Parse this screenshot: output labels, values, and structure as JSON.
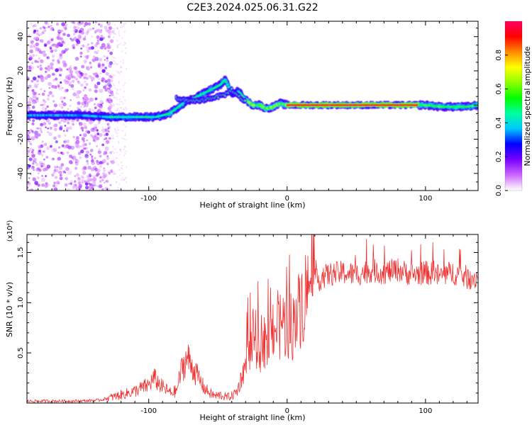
{
  "title": "C2E3.2024.025.06.31.G22",
  "chart_data": [
    {
      "type": "heatmap",
      "xlabel": "Height of straight line (km)",
      "ylabel": "Frequency (Hz)",
      "xlim": [
        -188,
        138
      ],
      "ylim": [
        -50,
        49
      ],
      "x_ticks": [
        -100,
        0,
        100
      ],
      "y_ticks": [
        -40,
        -20,
        0,
        20,
        40
      ],
      "grid": false,
      "colorbar": {
        "label": "Normalized spectral amplitude",
        "range": [
          0,
          1
        ],
        "ticks": [
          0.0,
          0.2,
          0.4,
          0.6,
          0.8
        ],
        "colors": [
          "#ffffff",
          "#cc66ff",
          "#7700ff",
          "#0000ff",
          "#00c8ff",
          "#00ffa0",
          "#00ff00",
          "#90ff00",
          "#ffff00",
          "#ff8800",
          "#ff0000",
          "#ff0066"
        ]
      },
      "ridge": {
        "x": [
          -188,
          -150,
          -130,
          -110,
          -95,
          -85,
          -75,
          -65,
          -55,
          -48,
          -45,
          -40,
          -35,
          -30,
          -25,
          -20,
          -15,
          -10,
          -5,
          0,
          10,
          20,
          40,
          60,
          80,
          100,
          110,
          120,
          130,
          138
        ],
        "y": [
          -6,
          -6,
          -7,
          -7,
          -7,
          -5,
          1,
          5,
          9,
          12,
          15,
          7,
          8,
          3,
          0,
          0,
          -2,
          -1,
          1,
          0,
          0,
          0,
          0,
          0,
          0,
          0,
          -1,
          -1,
          -1,
          0
        ]
      },
      "secondary_ridge": {
        "x": [
          -80,
          -70,
          -60,
          -50,
          -45,
          -40,
          -35,
          -30
        ],
        "y": [
          4,
          2,
          3,
          5,
          6,
          9,
          5,
          2
        ]
      }
    },
    {
      "type": "line",
      "xlabel": "Height of straight line (km)",
      "ylabel": "SNR (10 * v/v)",
      "y_scale_note": "(x10⁴)",
      "xlim": [
        -188,
        138
      ],
      "ylim": [
        0,
        1.68
      ],
      "x_ticks": [
        -100,
        0,
        100
      ],
      "y_ticks": [
        0.5,
        1.0,
        1.5
      ],
      "series": [
        {
          "color": "#ee3333",
          "x": [
            -188,
            -150,
            -135,
            -120,
            -110,
            -100,
            -96,
            -92,
            -88,
            -84,
            -80,
            -76,
            -72,
            -68,
            -64,
            -60,
            -56,
            -52,
            -48,
            -44,
            -40,
            -36,
            -32,
            -28,
            -26,
            -24,
            -22,
            -20,
            -18,
            -16,
            -14,
            -12,
            -10,
            -8,
            -6,
            -4,
            -2,
            0,
            2,
            4,
            6,
            8,
            10,
            12,
            14,
            16,
            20,
            25,
            30,
            40,
            50,
            60,
            70,
            80,
            90,
            100,
            110,
            120,
            130,
            138
          ],
          "y": [
            0.02,
            0.02,
            0.03,
            0.08,
            0.12,
            0.18,
            0.25,
            0.18,
            0.14,
            0.1,
            0.12,
            0.35,
            0.45,
            0.35,
            0.25,
            0.15,
            0.1,
            0.07,
            0.08,
            0.06,
            0.07,
            0.12,
            0.3,
            0.45,
            0.55,
            0.7,
            0.6,
            0.45,
            0.7,
            0.6,
            0.55,
            0.65,
            0.8,
            0.75,
            0.7,
            0.85,
            0.78,
            0.75,
            0.8,
            0.75,
            0.85,
            0.9,
            1.0,
            1.05,
            1.1,
            1.15,
            1.2,
            1.25,
            1.28,
            1.3,
            1.28,
            1.32,
            1.3,
            1.33,
            1.28,
            1.3,
            1.27,
            1.3,
            1.25,
            1.25
          ]
        }
      ]
    }
  ]
}
